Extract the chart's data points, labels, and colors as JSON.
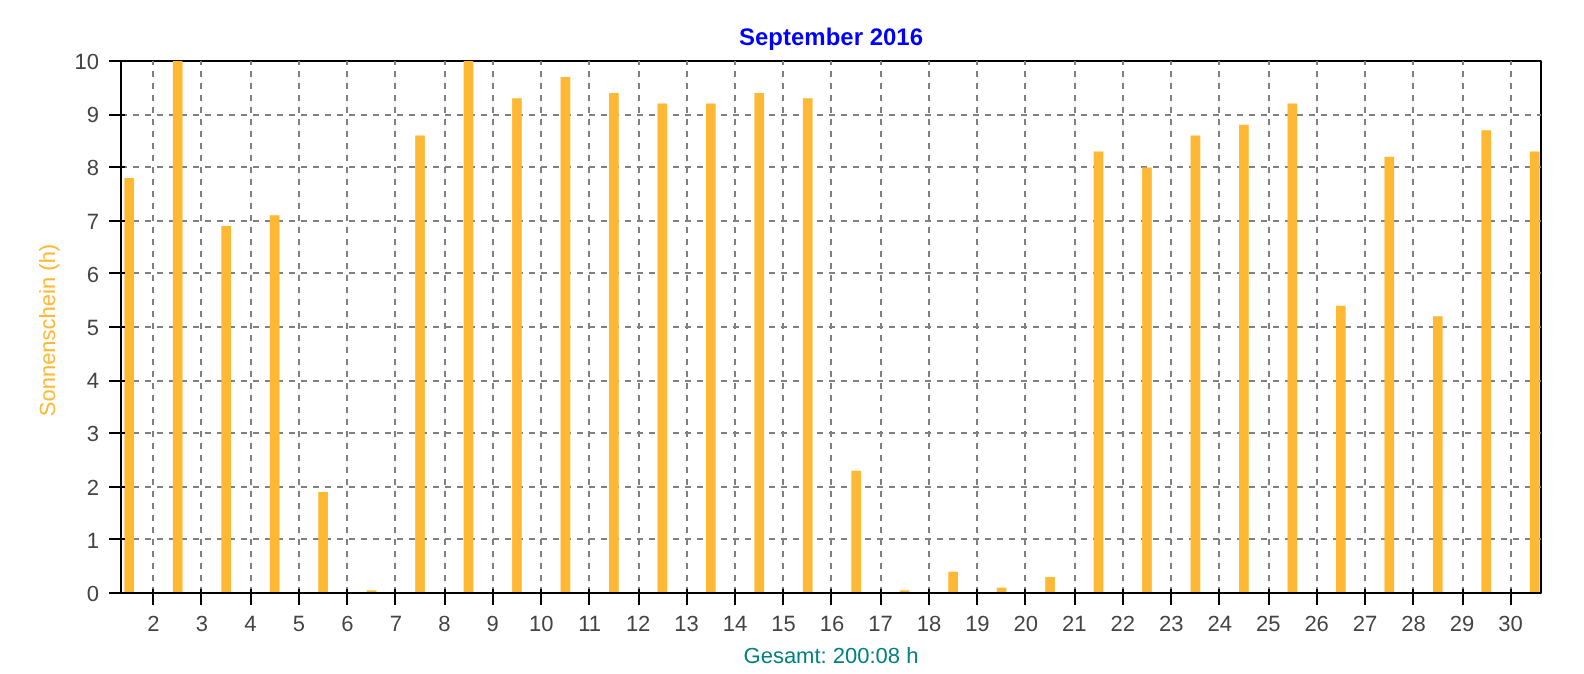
{
  "chart_data": {
    "type": "bar",
    "title": "September 2016",
    "ylabel": "Sonnenschein  (h)",
    "xlabel": "Gesamt: 200:08 h",
    "x": [
      1.5,
      2.5,
      3.5,
      4.5,
      5.5,
      6.5,
      7.5,
      8.5,
      9.5,
      10.5,
      11.5,
      12.5,
      13.5,
      14.5,
      15.5,
      16.5,
      17.5,
      18.5,
      19.5,
      20.5,
      21.5,
      22.5,
      23.5,
      24.5,
      25.5,
      26.5,
      27.5,
      28.5,
      29.5,
      30.5
    ],
    "values": [
      7.8,
      10.0,
      6.9,
      7.1,
      1.9,
      0.05,
      8.6,
      10.0,
      9.3,
      9.7,
      9.4,
      9.2,
      9.2,
      9.4,
      9.3,
      2.3,
      0.05,
      0.4,
      0.1,
      0.3,
      8.3,
      8.0,
      8.6,
      8.8,
      9.2,
      5.4,
      8.2,
      5.2,
      8.7,
      8.3
    ],
    "color": "#ffb833",
    "xlim": [
      1.33,
      30.63
    ],
    "xticks": [
      2,
      3,
      4,
      5,
      6,
      7,
      8,
      9,
      10,
      11,
      12,
      13,
      14,
      15,
      16,
      17,
      18,
      19,
      20,
      21,
      22,
      23,
      24,
      25,
      26,
      27,
      28,
      29,
      30
    ],
    "ylim": [
      0,
      10
    ],
    "yticks": [
      0,
      1,
      2,
      3,
      4,
      5,
      6,
      7,
      8,
      9,
      10
    ],
    "grid": true
  }
}
